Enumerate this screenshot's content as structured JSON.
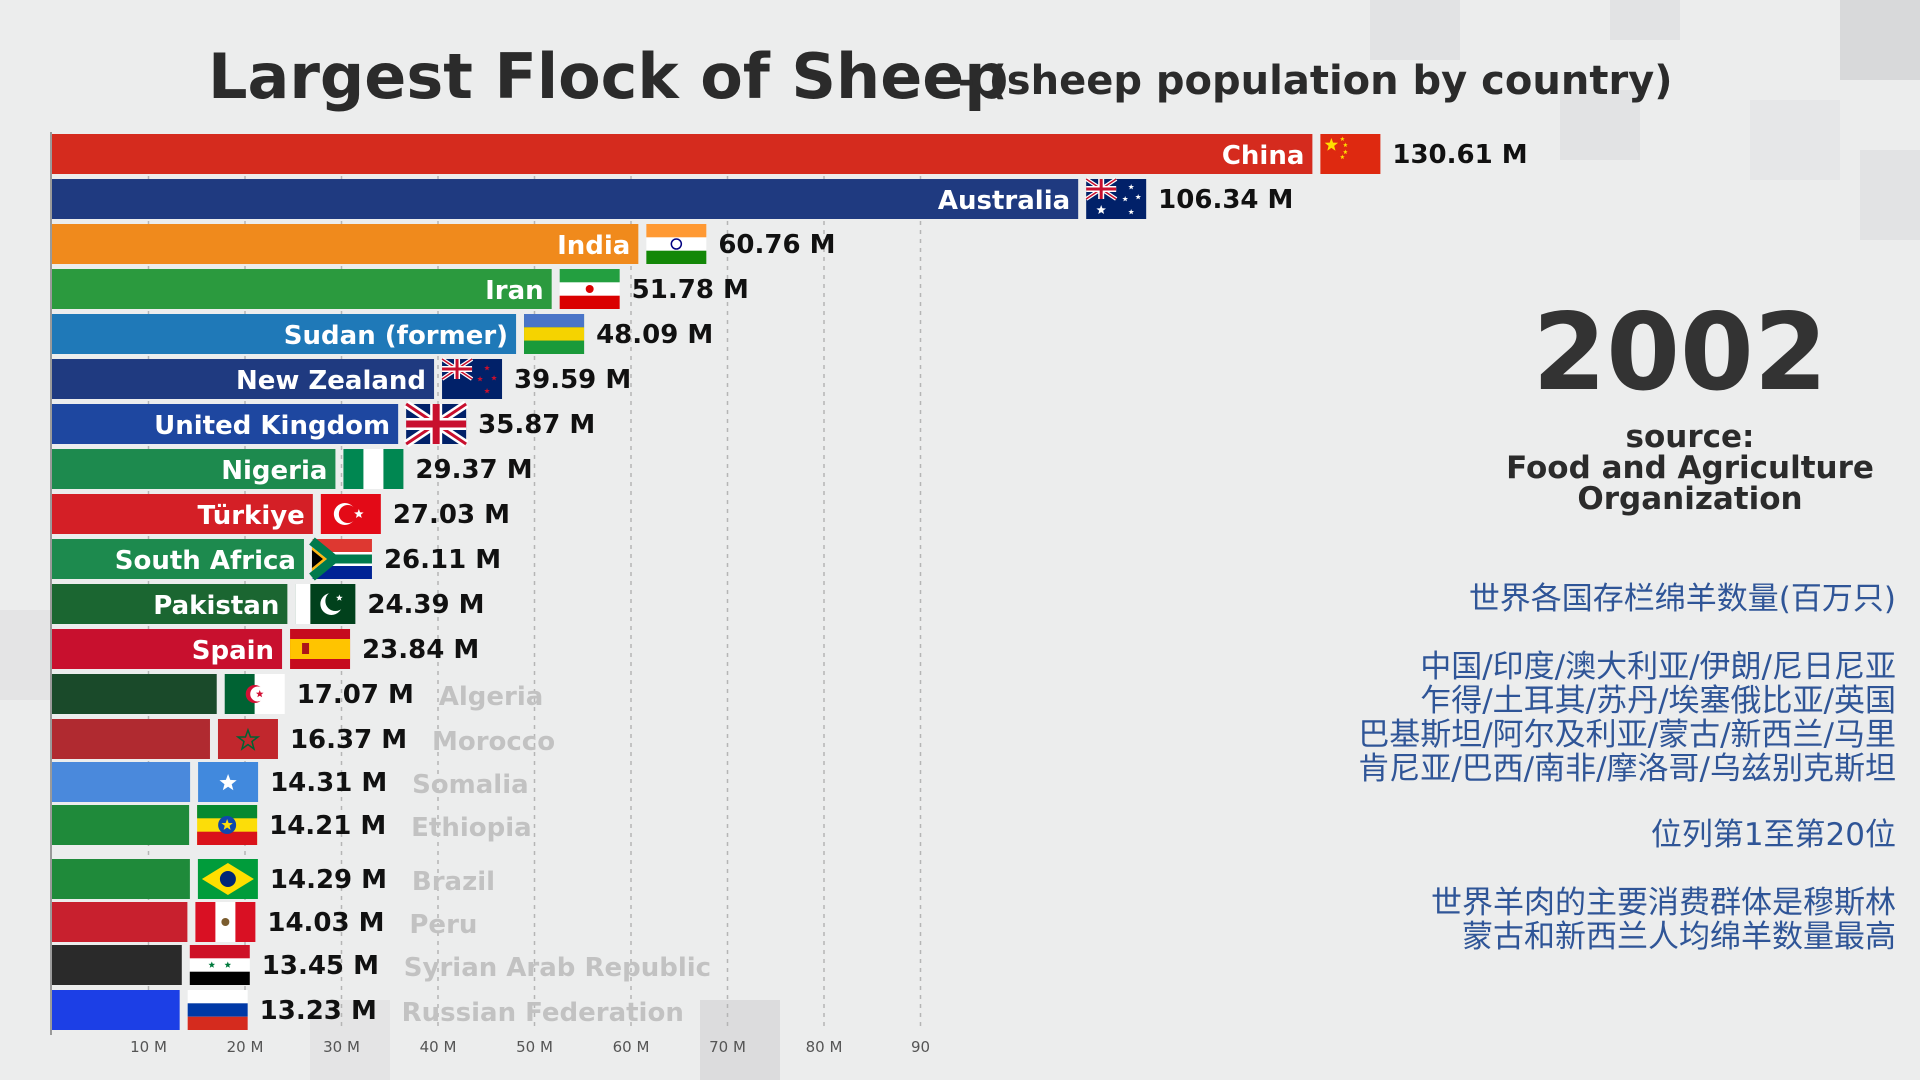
{
  "title": "Largest Flock of Sheep",
  "subtitle": "- (sheep population by country)",
  "year": "2002",
  "source_lines": [
    "source:",
    "Food and Agriculture",
    "Organization"
  ],
  "chinese_notes": [
    "世界各国存栏绵羊数量(百万只)",
    "中国/印度/澳大利亚/伊朗/尼日尼亚",
    "乍得/土耳其/苏丹/埃塞俄比亚/英国",
    "巴基斯坦/阿尔及利亚/蒙古/新西兰/马里",
    "肯尼亚/巴西/南非/摩洛哥/乌兹别克斯坦",
    "位列第1至第20位",
    "世界羊肉的主要消费群体是穆斯林",
    "蒙古和新西兰人均绵羊数量最高"
  ],
  "chart_data": {
    "type": "bar",
    "orientation": "horizontal",
    "unit": "M",
    "xlim": [
      0,
      130.61
    ],
    "x_ticks": [
      "10 M",
      "20 M",
      "30 M",
      "40 M",
      "50 M",
      "60 M",
      "70 M",
      "80 M",
      "90"
    ],
    "x_tick_values": [
      10,
      20,
      30,
      40,
      50,
      60,
      70,
      80,
      90
    ],
    "grid": "vertical dashed",
    "bars": [
      {
        "country": "China",
        "value": 130.61,
        "value_label": "130.61 M",
        "color": "#d52b1e",
        "flag": "china",
        "label_inside": true
      },
      {
        "country": "Australia",
        "value": 106.34,
        "value_label": "106.34 M",
        "color": "#1f3a80",
        "flag": "australia",
        "label_inside": true
      },
      {
        "country": "India",
        "value": 60.76,
        "value_label": "60.76 M",
        "color": "#f08a1c",
        "flag": "india",
        "label_inside": true
      },
      {
        "country": "Iran",
        "value": 51.78,
        "value_label": "51.78 M",
        "color": "#2b9a3e",
        "flag": "iran",
        "label_inside": true
      },
      {
        "country": "Sudan (former)",
        "value": 48.09,
        "value_label": "48.09 M",
        "color": "#1f79b8",
        "flag": "sudan",
        "label_inside": true
      },
      {
        "country": "New Zealand",
        "value": 39.59,
        "value_label": "39.59 M",
        "color": "#1f3a80",
        "flag": "newzealand",
        "label_inside": true
      },
      {
        "country": "United Kingdom",
        "value": 35.87,
        "value_label": "35.87 M",
        "color": "#1e47a0",
        "flag": "uk",
        "label_inside": true
      },
      {
        "country": "Nigeria",
        "value": 29.37,
        "value_label": "29.37 M",
        "color": "#1d8a4e",
        "flag": "nigeria",
        "label_inside": true
      },
      {
        "country": "Türkiye",
        "value": 27.03,
        "value_label": "27.03 M",
        "color": "#d41f26",
        "flag": "turkey",
        "label_inside": true
      },
      {
        "country": "South Africa",
        "value": 26.11,
        "value_label": "26.11 M",
        "color": "#1d8a4e",
        "flag": "southafrica",
        "label_inside": true
      },
      {
        "country": "Pakistan",
        "value": 24.39,
        "value_label": "24.39 M",
        "color": "#1b6631",
        "flag": "pakistan",
        "label_inside": true
      },
      {
        "country": "Spain",
        "value": 23.84,
        "value_label": "23.84 M",
        "color": "#c8102e",
        "flag": "spain",
        "label_inside": true
      },
      {
        "country": "Algeria",
        "value": 17.07,
        "value_label": "17.07 M",
        "color": "#1a4a2a",
        "flag": "algeria",
        "label_inside": false
      },
      {
        "country": "Morocco",
        "value": 16.37,
        "value_label": "16.37 M",
        "color": "#b02a30",
        "flag": "morocco",
        "label_inside": false
      },
      {
        "country": "Somalia",
        "value": 14.31,
        "value_label": "14.31 M",
        "color": "#4a89dc",
        "flag": "somalia",
        "label_inside": false
      },
      {
        "country": "Ethiopia",
        "value": 14.21,
        "value_label": "14.21 M",
        "color": "#1f8a3a",
        "flag": "ethiopia",
        "label_inside": false
      },
      {
        "country": "Brazil",
        "value": 14.29,
        "value_label": "14.29 M",
        "color": "#1f8a3a",
        "flag": "brazil",
        "label_inside": false
      },
      {
        "country": "Peru",
        "value": 14.03,
        "value_label": "14.03 M",
        "color": "#c8202e",
        "flag": "peru",
        "label_inside": false
      },
      {
        "country": "Syrian Arab Republic",
        "value": 13.45,
        "value_label": "13.45 M",
        "color": "#2a2a2a",
        "flag": "syria",
        "label_inside": false
      },
      {
        "country": "Russian Federation",
        "value": 13.23,
        "value_label": "13.23 M",
        "color": "#1c3fe6",
        "flag": "russia",
        "label_inside": false
      }
    ]
  }
}
